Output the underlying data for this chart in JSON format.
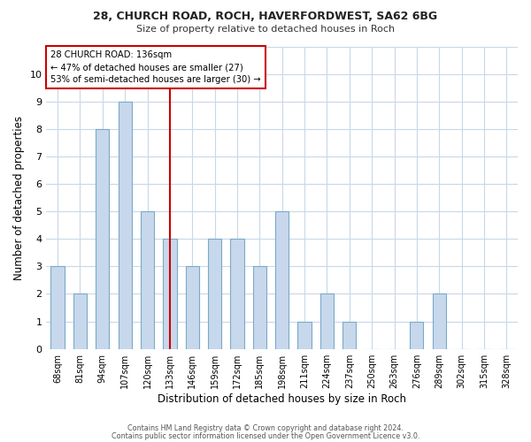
{
  "title_line1": "28, CHURCH ROAD, ROCH, HAVERFORDWEST, SA62 6BG",
  "title_line2": "Size of property relative to detached houses in Roch",
  "xlabel": "Distribution of detached houses by size in Roch",
  "ylabel": "Number of detached properties",
  "footer_line1": "Contains HM Land Registry data © Crown copyright and database right 2024.",
  "footer_line2": "Contains public sector information licensed under the Open Government Licence v3.0.",
  "bin_labels": [
    "68sqm",
    "81sqm",
    "94sqm",
    "107sqm",
    "120sqm",
    "133sqm",
    "146sqm",
    "159sqm",
    "172sqm",
    "185sqm",
    "198sqm",
    "211sqm",
    "224sqm",
    "237sqm",
    "250sqm",
    "263sqm",
    "276sqm",
    "289sqm",
    "302sqm",
    "315sqm",
    "328sqm"
  ],
  "bar_values": [
    3,
    2,
    8,
    9,
    5,
    4,
    3,
    4,
    4,
    3,
    5,
    1,
    2,
    1,
    0,
    0,
    1,
    2,
    0,
    0,
    0
  ],
  "bar_color": "#c8d8ec",
  "bar_edgecolor": "#7aaac8",
  "reference_line_label": "28 CHURCH ROAD: 136sqm",
  "annotation_line1": "← 47% of detached houses are smaller (27)",
  "annotation_line2": "53% of semi-detached houses are larger (30) →",
  "annotation_box_edgecolor": "#cc0000",
  "annotation_box_facecolor": "#ffffff",
  "vline_color": "#cc0000",
  "vline_x_index": 5,
  "ylim": [
    0,
    11
  ],
  "yticks": [
    0,
    1,
    2,
    3,
    4,
    5,
    6,
    7,
    8,
    9,
    10,
    11
  ],
  "background_color": "#ffffff",
  "grid_color": "#c8d8e8",
  "bar_width": 0.6
}
